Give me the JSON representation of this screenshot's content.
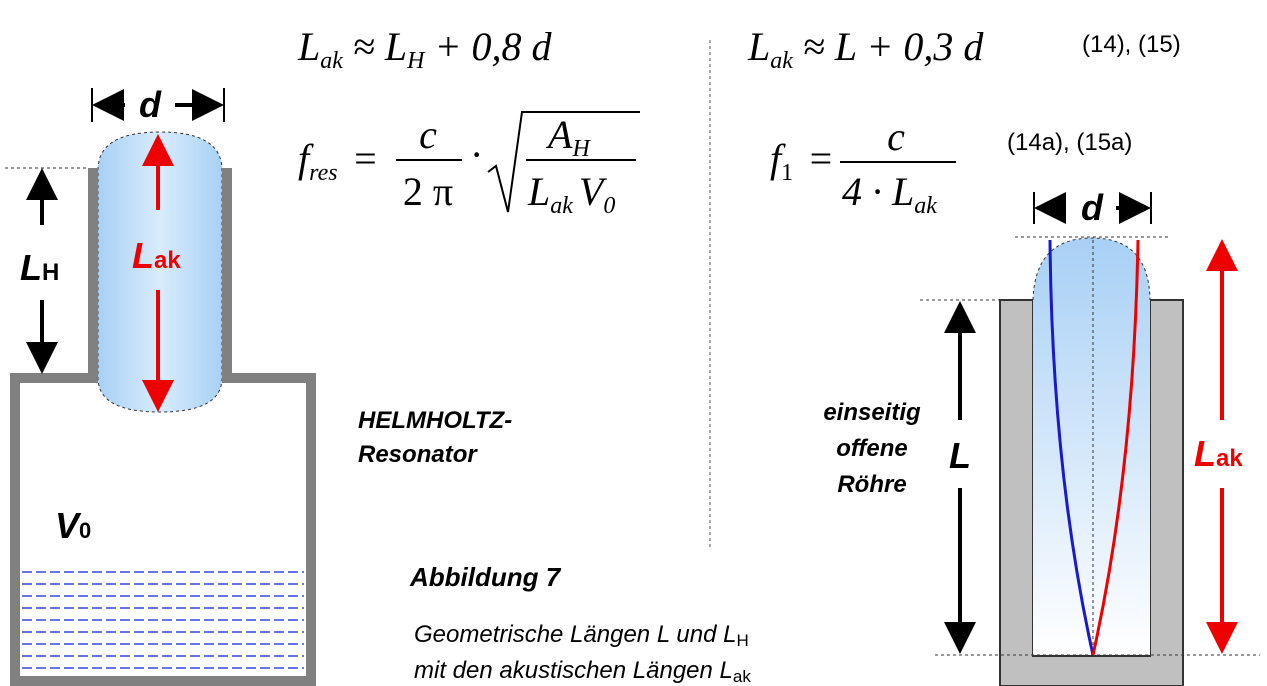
{
  "left": {
    "d": "d",
    "LH": "L",
    "LH_sub": "H",
    "Lak": "L",
    "Lak_sub": "ak",
    "V": "V",
    "V_sub": "0",
    "name_1": "HELMHOLTZ-",
    "name_2": "Resonator"
  },
  "right": {
    "d": "d",
    "L": "L",
    "Lak": "L",
    "Lak_sub": "ak",
    "name_1": "einseitig",
    "name_2": "offene",
    "name_3": "Röhre"
  },
  "equations": {
    "eq1": {
      "lhs": "L",
      "lhs_sub": "ak",
      "rhs": "≈ L",
      "rhs_sub": "H",
      "rest": "+ 0,8 d"
    },
    "eq2": {
      "lhs": "f",
      "lhs_sub": "res",
      "eq": "=",
      "num": "c",
      "den": "2 π",
      "dot": "·",
      "rnum": "A",
      "rnum_sub": "H",
      "rden1": "L",
      "rden1_sub": "ak",
      "rden2": "V",
      "rden2_sub": "0"
    },
    "eq3": {
      "lhs": "L",
      "lhs_sub": "ak",
      "rest": "≈ L + 0,3 d",
      "ref": "(14), (15)"
    },
    "eq4": {
      "lhs": "f",
      "lhs_sub": "1",
      "eq": "=",
      "num": "c",
      "den": "4 · L",
      "den_sub": "ak",
      "ref": "(14a), (15a)"
    }
  },
  "caption": {
    "title": "Abbildung 7",
    "line1": "Geometrische Längen L und L",
    "line1_sub": "H",
    "line2": "mit den akustischen Längen L",
    "line2_sub": "ak"
  }
}
